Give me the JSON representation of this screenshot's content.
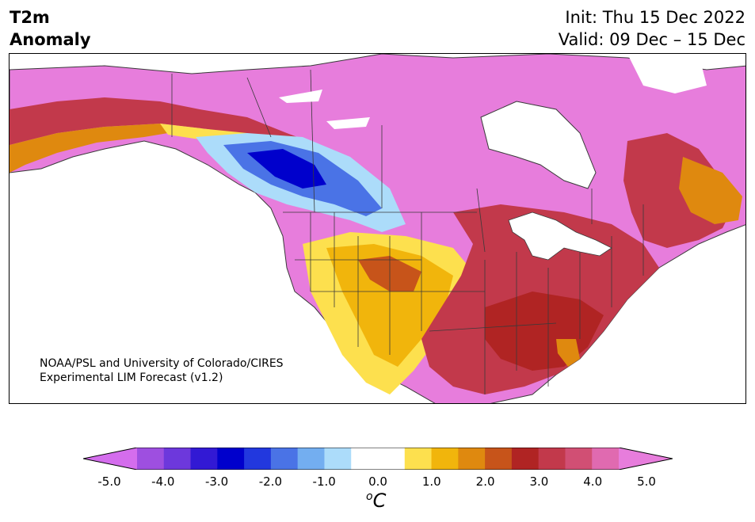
{
  "header": {
    "title_line1": "T2m",
    "title_line2": "Anomaly",
    "init": "Init: Thu 15 Dec 2022",
    "valid": "Valid: 09 Dec – 15 Dec"
  },
  "credit": {
    "line1": "NOAA/PSL and University of Colorado/CIRES",
    "line2": "Experimental LIM Forecast (v1.2)"
  },
  "colorbar": {
    "colors": [
      "#d46ded",
      "#9e4fe0",
      "#6d38dc",
      "#3219d4",
      "#0000cc",
      "#2238de",
      "#4a73e6",
      "#73aef0",
      "#acdcfa",
      "#ffffff",
      "#ffffff",
      "#fde04e",
      "#f1b50c",
      "#df890f",
      "#c7541a",
      "#b02423",
      "#c2394b",
      "#d14f74",
      "#e06ab0",
      "#e77ddc"
    ],
    "tick_labels": [
      "-5.0",
      "-4.0",
      "-3.0",
      "-2.0",
      "-1.0",
      "0.0",
      "1.0",
      "2.0",
      "3.0",
      "4.0",
      "5.0"
    ],
    "unit": "oC"
  },
  "map": {
    "land_fill": "#e77ddc",
    "ocean_fill": "#ffffff",
    "border_color": "#3a3a3a",
    "regions": [
      {
        "name": "alaska-warm",
        "color": "#e06ab0"
      },
      {
        "name": "northwest-cold",
        "color": "#4a73e6"
      },
      {
        "name": "southwest-warm",
        "color": "#f1b50c"
      },
      {
        "name": "southeast-warm",
        "color": "#c2394b"
      },
      {
        "name": "east-canada-warm",
        "color": "#df890f"
      }
    ]
  }
}
